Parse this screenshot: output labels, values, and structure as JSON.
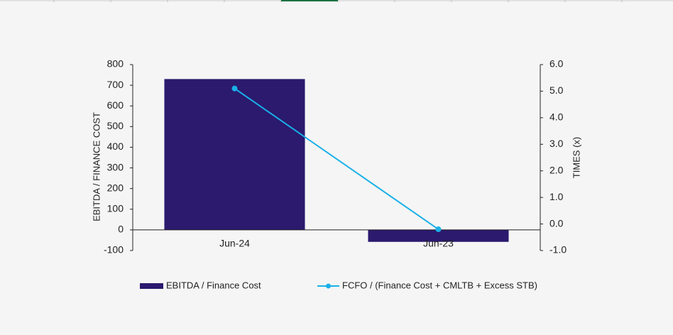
{
  "chart_data": {
    "type": "bar-line",
    "categories": [
      "Jun-24",
      "Jun-23"
    ],
    "y_label": "EBITDA / FINANCE COST",
    "y2_label": "TIMES (x)",
    "series": [
      {
        "name": "EBITDA / Finance Cost",
        "type": "bar",
        "color": "#2b1a6e",
        "values": [
          730,
          -58
        ]
      },
      {
        "name": "FCFO / (Finance Cost + CMLTB + Excess STB)",
        "type": "line",
        "axis": "y2",
        "color": "#1ab0e8",
        "values": [
          5.1,
          -0.2
        ]
      }
    ],
    "ylim": [
      -100,
      800
    ],
    "yticks": [
      -100,
      0,
      100,
      200,
      300,
      400,
      500,
      600,
      700,
      800
    ],
    "y2lim": [
      -1,
      6
    ],
    "y2ticks": [
      {
        "value": -1,
        "label": "-1.0"
      },
      {
        "value": 0,
        "label": "0.0"
      },
      {
        "value": 1,
        "label": "1.0"
      },
      {
        "value": 2,
        "label": "2.0"
      },
      {
        "value": 3,
        "label": "3.0"
      },
      {
        "value": 4,
        "label": "4.0"
      },
      {
        "value": 5,
        "label": "5.0"
      },
      {
        "value": 6,
        "label": "6.0"
      }
    ]
  }
}
